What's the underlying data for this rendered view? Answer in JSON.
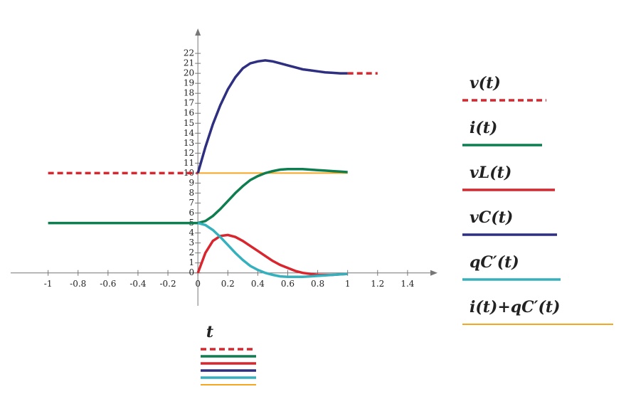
{
  "chart_data": {
    "type": "line",
    "x_label": "t",
    "x": [
      -1,
      0,
      0.05,
      0.1,
      0.15,
      0.2,
      0.25,
      0.3,
      0.35,
      0.4,
      0.45,
      0.5,
      0.55,
      0.6,
      0.65,
      0.7,
      0.75,
      0.8,
      0.85,
      0.9,
      0.95,
      1,
      1.2
    ],
    "xlim": [
      -1.25,
      1.6
    ],
    "ylim": [
      -3.3,
      24.5
    ],
    "xticks": [
      -1,
      -0.8,
      -0.6,
      -0.4,
      -0.2,
      0,
      0.2,
      0.4,
      0.6,
      0.8,
      1,
      1.2,
      1.4
    ],
    "yticks": [
      0,
      1,
      2,
      3,
      4,
      5,
      6,
      7,
      8,
      9,
      10,
      11,
      12,
      13,
      14,
      15,
      16,
      17,
      18,
      19,
      20,
      21,
      22
    ],
    "series": [
      {
        "name": "v(t)",
        "color": "#d9262e",
        "dashed": true,
        "values": [
          10,
          10,
          null,
          null,
          null,
          null,
          null,
          null,
          null,
          null,
          null,
          null,
          null,
          null,
          null,
          null,
          null,
          null,
          null,
          null,
          null,
          20,
          20
        ]
      },
      {
        "name": "i(t)",
        "color": "#0e7d4f",
        "dashed": false,
        "values": [
          5,
          5,
          5.2,
          5.7,
          6.4,
          7.2,
          8.0,
          8.7,
          9.3,
          9.7,
          10.0,
          10.2,
          10.35,
          10.4,
          10.4,
          10.4,
          10.35,
          10.3,
          10.25,
          10.2,
          10.15,
          10.1,
          null
        ]
      },
      {
        "name": "vL(t)",
        "color": "#d9262e",
        "dashed": false,
        "values": [
          null,
          0,
          2.0,
          3.2,
          3.7,
          3.8,
          3.6,
          3.2,
          2.7,
          2.2,
          1.7,
          1.2,
          0.8,
          0.5,
          0.2,
          0.0,
          -0.1,
          -0.2,
          -0.2,
          -0.2,
          -0.15,
          -0.1,
          null
        ]
      },
      {
        "name": "vC(t)",
        "color": "#2e2f80",
        "dashed": false,
        "values": [
          null,
          10,
          12.6,
          14.9,
          16.8,
          18.4,
          19.6,
          20.5,
          21.0,
          21.2,
          21.3,
          21.2,
          21.0,
          20.8,
          20.6,
          20.4,
          20.3,
          20.2,
          20.1,
          20.05,
          20.0,
          20.0,
          null
        ]
      },
      {
        "name": "qC′(t)",
        "color": "#35b0bd",
        "dashed": false,
        "values": [
          null,
          5,
          4.8,
          4.3,
          3.6,
          2.8,
          2.0,
          1.3,
          0.7,
          0.3,
          0,
          -0.2,
          -0.35,
          -0.4,
          -0.4,
          -0.4,
          -0.35,
          -0.3,
          -0.25,
          -0.2,
          -0.15,
          -0.1,
          null
        ]
      },
      {
        "name": "i(t)+qC′(t)",
        "color": "#f5a623",
        "dashed": false,
        "values": [
          null,
          10,
          10,
          10,
          10,
          10,
          10,
          10,
          10,
          10,
          10,
          10,
          10,
          10,
          10,
          10,
          10,
          10,
          10,
          10,
          10,
          10,
          null
        ]
      }
    ]
  }
}
